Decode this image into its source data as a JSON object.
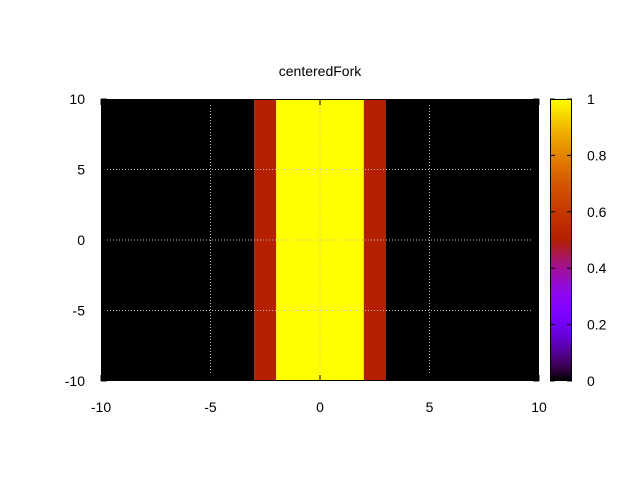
{
  "chart_data": {
    "type": "heatmap",
    "title": "centeredFork",
    "xlabel": "",
    "ylabel": "",
    "xlim": [
      -10,
      10
    ],
    "ylim": [
      -10,
      10
    ],
    "x_ticks": [
      -10,
      -5,
      0,
      5,
      10
    ],
    "y_ticks": [
      -10,
      -5,
      0,
      5,
      10
    ],
    "grid": true,
    "colorbar": {
      "range": [
        0,
        1
      ],
      "ticks": [
        0,
        0.2,
        0.4,
        0.6,
        0.8,
        1
      ],
      "tick_labels": [
        "0",
        "0.2",
        "0.4",
        "0.6",
        "0.8",
        "1"
      ],
      "palette": "gnuplot black-purple-red-orange-yellow"
    },
    "bands": [
      {
        "x0": -10,
        "x1": -3,
        "value": 0
      },
      {
        "x0": -3,
        "x1": -2,
        "value": 0.5
      },
      {
        "x0": -2,
        "x1": 2,
        "value": 1
      },
      {
        "x0": 2,
        "x1": 3,
        "value": 0.5
      },
      {
        "x0": 3,
        "x1": 10,
        "value": 0
      }
    ]
  }
}
